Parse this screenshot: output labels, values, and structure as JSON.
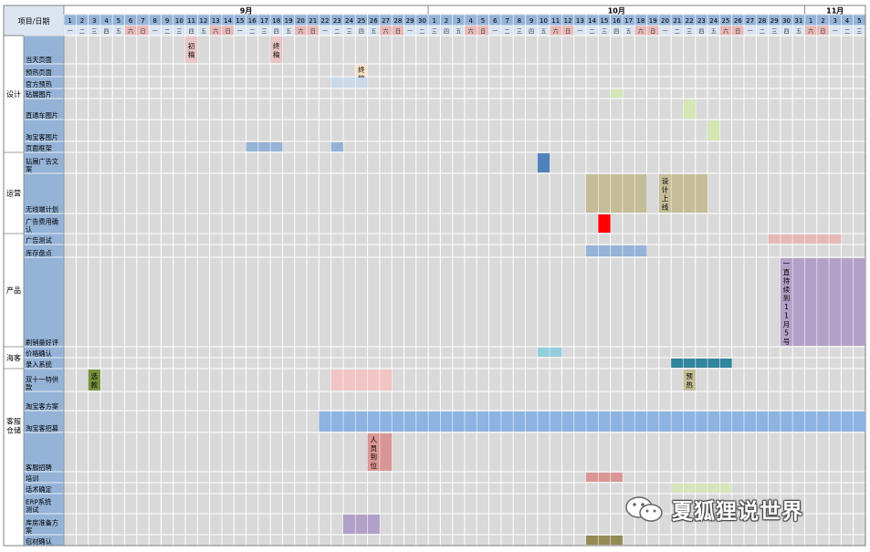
{
  "header": {
    "corner_label": "项目/日期",
    "months": [
      {
        "label": "9月",
        "start": 0,
        "span": 30
      },
      {
        "label": "10月",
        "start": 30,
        "span": 31
      },
      {
        "label": "11月",
        "start": 61,
        "span": 5
      }
    ],
    "day_numbers": [
      1,
      2,
      3,
      4,
      5,
      6,
      7,
      8,
      9,
      10,
      11,
      12,
      13,
      14,
      15,
      16,
      17,
      18,
      19,
      20,
      21,
      22,
      23,
      24,
      25,
      26,
      27,
      28,
      29,
      30,
      1,
      2,
      3,
      4,
      5,
      6,
      7,
      8,
      9,
      10,
      11,
      12,
      13,
      14,
      15,
      16,
      17,
      18,
      19,
      20,
      21,
      22,
      23,
      24,
      25,
      26,
      27,
      28,
      29,
      30,
      31,
      1,
      2,
      3,
      4,
      5
    ],
    "weekdays": [
      "一",
      "二",
      "三",
      "四",
      "五",
      "六",
      "日",
      "一",
      "二",
      "三",
      "四",
      "五",
      "六",
      "日",
      "一",
      "二",
      "三",
      "四",
      "五",
      "六",
      "日",
      "一",
      "二",
      "三",
      "四",
      "五",
      "六",
      "日",
      "一",
      "二",
      "三",
      "四",
      "五",
      "六",
      "日",
      "一",
      "二",
      "三",
      "四",
      "五",
      "六",
      "日",
      "一",
      "二",
      "三",
      "四",
      "五",
      "六",
      "日",
      "一",
      "二",
      "三",
      "四",
      "五",
      "六",
      "日",
      "一",
      "二",
      "三",
      "四",
      "五",
      "六",
      "日",
      "一",
      "二",
      "三"
    ]
  },
  "groups": [
    {
      "label": "设计",
      "row_start": 0,
      "row_end": 6
    },
    {
      "label": "运营",
      "row_start": 7,
      "row_end": 9
    },
    {
      "label": "产品",
      "row_start": 10,
      "row_end": 12
    },
    {
      "label": "海客",
      "row_start": 13,
      "row_end": 14
    },
    {
      "label": "客服仓储",
      "row_start": 15,
      "row_end": 19
    }
  ],
  "tasks": [
    {
      "label": "当天页面"
    },
    {
      "label": "预热页面"
    },
    {
      "label": "官方预热"
    },
    {
      "label": "钻展图片"
    },
    {
      "label": "直通车图片"
    },
    {
      "label": "淘宝客图片"
    },
    {
      "label": "页面框架"
    },
    {
      "label": "钻展广告文案"
    },
    {
      "label": "无线端计划"
    },
    {
      "label": "广告费用确认"
    },
    {
      "label": "广告测试"
    },
    {
      "label": "库存盘点"
    },
    {
      "label": "刷销量好评"
    },
    {
      "label": "价格确认"
    },
    {
      "label": "录入系统"
    },
    {
      "label": "双十一特供款"
    },
    {
      "label": "淘宝客方案"
    },
    {
      "label": "淘宝客招募"
    },
    {
      "label": "客服招聘"
    },
    {
      "label": "培训"
    },
    {
      "label": "话术确定"
    },
    {
      "label": "ERP系统测试"
    },
    {
      "label": "库房准备方案"
    },
    {
      "label": "包材确认"
    }
  ],
  "bars": [
    {
      "row": 0,
      "start_day": 10,
      "days": 1,
      "color": "#e8c6c6",
      "label": "初稿"
    },
    {
      "row": 0,
      "start_day": 17,
      "days": 1,
      "color": "#e8c6c6",
      "label": "终稿"
    },
    {
      "row": 1,
      "start_day": 24,
      "days": 1,
      "color": "#f7e3c8",
      "label": "终稿"
    },
    {
      "row": 2,
      "start_day": 22,
      "days": 3,
      "color": "#c9d9ea",
      "label": ""
    },
    {
      "row": 3,
      "start_day": 45,
      "days": 1,
      "color": "#d4e6b4",
      "label": ""
    },
    {
      "row": 4,
      "start_day": 51,
      "days": 1,
      "color": "#d4e6b4",
      "label": ""
    },
    {
      "row": 5,
      "start_day": 53,
      "days": 1,
      "color": "#d4e6b4",
      "label": ""
    },
    {
      "row": 6,
      "start_day": 15,
      "days": 3,
      "color": "#95b3d7",
      "label": ""
    },
    {
      "row": 6,
      "start_day": 22,
      "days": 1,
      "color": "#95b3d7",
      "label": ""
    },
    {
      "row": 7,
      "start_day": 39,
      "days": 1,
      "color": "#4f81bd",
      "label": ""
    },
    {
      "row": 8,
      "start_day": 43,
      "days": 5,
      "color": "#c4bd97",
      "label": ""
    },
    {
      "row": 8,
      "start_day": 49,
      "days": 4,
      "color": "#c4bd97",
      "label": "设计上线"
    },
    {
      "row": 9,
      "start_day": 44,
      "days": 1,
      "color": "#ff0000",
      "label": ""
    },
    {
      "row": 10,
      "start_day": 58,
      "days": 6,
      "color": "#e6b8b7",
      "label": ""
    },
    {
      "row": 11,
      "start_day": 43,
      "days": 5,
      "color": "#95b3d7",
      "label": ""
    },
    {
      "row": 12,
      "start_day": 59,
      "days": 7,
      "color": "#b1a0c7",
      "label": "一直持续到11月5号"
    },
    {
      "row": 13,
      "start_day": 39,
      "days": 2,
      "color": "#92cddc",
      "label": ""
    },
    {
      "row": 14,
      "start_day": 50,
      "days": 5,
      "color": "#31859c",
      "label": ""
    },
    {
      "row": 15,
      "start_day": 2,
      "days": 1,
      "color": "#76923c",
      "label": "选款"
    },
    {
      "row": 15,
      "start_day": 22,
      "days": 5,
      "color": "#f2c4c4",
      "label": ""
    },
    {
      "row": 15,
      "start_day": 51,
      "days": 1,
      "color": "#c4bd97",
      "label": "预热"
    },
    {
      "row": 17,
      "start_day": 21,
      "days": 45,
      "color": "#8db3e2",
      "label": ""
    },
    {
      "row": 18,
      "start_day": 25,
      "days": 2,
      "color": "#da9694",
      "label": "人员到位"
    },
    {
      "row": 19,
      "start_day": 43,
      "days": 3,
      "color": "#da9694",
      "label": ""
    },
    {
      "row": 20,
      "start_day": 50,
      "days": 5,
      "color": "#d7e4bc",
      "label": ""
    },
    {
      "row": 22,
      "start_day": 23,
      "days": 3,
      "color": "#b1a0c7",
      "label": ""
    },
    {
      "row": 23,
      "start_day": 43,
      "days": 3,
      "color": "#948a54",
      "label": ""
    }
  ],
  "watermark": {
    "text": "夏狐狸说世界",
    "icon": "wechat-icon"
  },
  "colors": {
    "header_fill": "#dbe5f1",
    "label_fill": "#95b3d7",
    "grid_fill": "#d9d9d9",
    "weekend_fill": "#e6b8b7"
  }
}
